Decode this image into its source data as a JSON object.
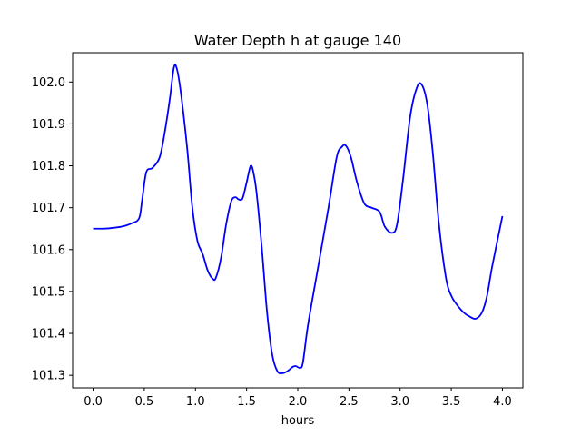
{
  "chart_data": {
    "type": "line",
    "title": "Water Depth h at gauge 140",
    "xlabel": "hours",
    "ylabel": "",
    "xlim": [
      -0.2,
      4.2
    ],
    "ylim": [
      101.27,
      102.07
    ],
    "xticks": [
      "0.0",
      "0.5",
      "1.0",
      "1.5",
      "2.0",
      "2.5",
      "3.0",
      "3.5",
      "4.0"
    ],
    "yticks": [
      "101.3",
      "101.4",
      "101.5",
      "101.6",
      "101.7",
      "101.8",
      "101.9",
      "102.0"
    ],
    "grid": false,
    "colors": {
      "line": "#0000ff",
      "axes": "#000000",
      "background": "#ffffff"
    },
    "series": [
      {
        "x": [
          0.0,
          0.1,
          0.2,
          0.3,
          0.38,
          0.45,
          0.48,
          0.52,
          0.58,
          0.65,
          0.7,
          0.75,
          0.79,
          0.82,
          0.86,
          0.92,
          0.97,
          1.02,
          1.07,
          1.12,
          1.17,
          1.2,
          1.25,
          1.3,
          1.35,
          1.39,
          1.42,
          1.46,
          1.5,
          1.54,
          1.57,
          1.6,
          1.65,
          1.7,
          1.75,
          1.8,
          1.85,
          1.9,
          1.95,
          1.98,
          2.02,
          2.05,
          2.1,
          2.2,
          2.3,
          2.38,
          2.43,
          2.47,
          2.52,
          2.58,
          2.65,
          2.72,
          2.8,
          2.85,
          2.92,
          2.97,
          3.03,
          3.1,
          3.17,
          3.22,
          3.27,
          3.32,
          3.38,
          3.45,
          3.5,
          3.55,
          3.62,
          3.68,
          3.74,
          3.8,
          3.85,
          3.9,
          4.0
        ],
        "y": [
          101.65,
          101.65,
          101.652,
          101.656,
          101.663,
          101.675,
          101.72,
          101.785,
          101.795,
          101.82,
          101.88,
          101.96,
          102.035,
          102.03,
          101.97,
          101.84,
          101.7,
          101.62,
          101.59,
          101.55,
          101.53,
          101.533,
          101.58,
          101.66,
          101.715,
          101.725,
          101.72,
          101.722,
          101.76,
          101.8,
          101.78,
          101.73,
          101.6,
          101.45,
          101.35,
          101.31,
          101.305,
          101.31,
          101.32,
          101.322,
          101.318,
          101.33,
          101.42,
          101.56,
          101.7,
          101.82,
          101.845,
          101.848,
          101.82,
          101.76,
          101.71,
          101.7,
          101.69,
          101.655,
          101.64,
          101.66,
          101.77,
          101.92,
          101.99,
          101.99,
          101.94,
          101.83,
          101.66,
          101.53,
          101.49,
          101.47,
          101.45,
          101.44,
          101.435,
          101.45,
          101.49,
          101.56,
          101.68
        ]
      }
    ]
  }
}
